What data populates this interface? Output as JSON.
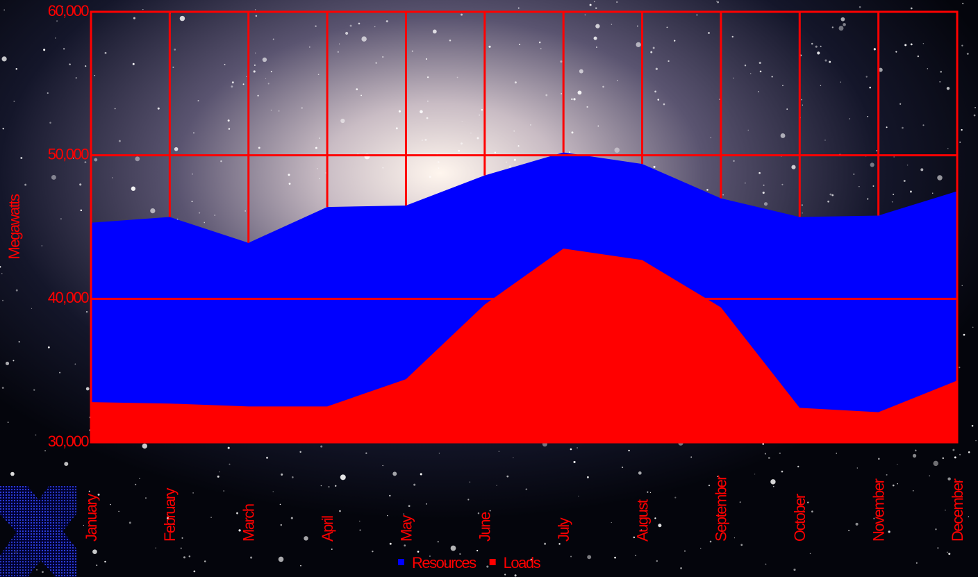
{
  "chart_data": {
    "type": "area",
    "y_label": "Megawatts",
    "categories": [
      "January",
      "February",
      "March",
      "April",
      "May",
      "June",
      "July",
      "August",
      "September",
      "October",
      "November",
      "December"
    ],
    "series": [
      {
        "name": "Resources",
        "color": "#0000ff",
        "values": [
          45300,
          45700,
          43900,
          46400,
          46500,
          48600,
          50200,
          49400,
          47000,
          45700,
          45800,
          47500
        ]
      },
      {
        "name": "Loads",
        "color": "#ff0000",
        "values": [
          32800,
          32700,
          32500,
          32500,
          34400,
          39600,
          43500,
          42700,
          39400,
          32400,
          32100,
          34300
        ]
      }
    ],
    "ylim": [
      30000,
      60000
    ],
    "yticks": [
      {
        "value": 30000,
        "label": "30,000"
      },
      {
        "value": 40000,
        "label": "40,000"
      },
      {
        "value": 50000,
        "label": "50,000"
      },
      {
        "value": 60000,
        "label": "60,000"
      }
    ],
    "grid": true,
    "grid_color": "#ff0000",
    "text_color": "#ff0000",
    "legend": "bottom"
  }
}
